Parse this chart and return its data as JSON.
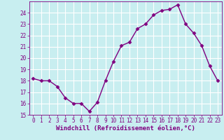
{
  "x": [
    0,
    1,
    2,
    3,
    4,
    5,
    6,
    7,
    8,
    9,
    10,
    11,
    12,
    13,
    14,
    15,
    16,
    17,
    18,
    19,
    20,
    21,
    22,
    23
  ],
  "y": [
    18.2,
    18.0,
    18.0,
    17.5,
    16.5,
    16.0,
    16.0,
    15.3,
    16.1,
    18.0,
    19.7,
    21.1,
    21.4,
    22.6,
    23.0,
    23.8,
    24.2,
    24.3,
    24.7,
    23.0,
    22.2,
    21.1,
    19.3,
    18.0
  ],
  "line_color": "#800080",
  "marker": "D",
  "marker_size": 2.5,
  "background_color": "#c8eef0",
  "grid_color": "#ffffff",
  "xlabel": "Windchill (Refroidissement éolien,°C)",
  "xlim": [
    -0.5,
    23.5
  ],
  "ylim": [
    15,
    25
  ],
  "yticks": [
    15,
    16,
    17,
    18,
    19,
    20,
    21,
    22,
    23,
    24
  ],
  "xticks": [
    0,
    1,
    2,
    3,
    4,
    5,
    6,
    7,
    8,
    9,
    10,
    11,
    12,
    13,
    14,
    15,
    16,
    17,
    18,
    19,
    20,
    21,
    22,
    23
  ],
  "tick_fontsize": 5.5,
  "label_fontsize": 6.5,
  "line_width": 1.0
}
